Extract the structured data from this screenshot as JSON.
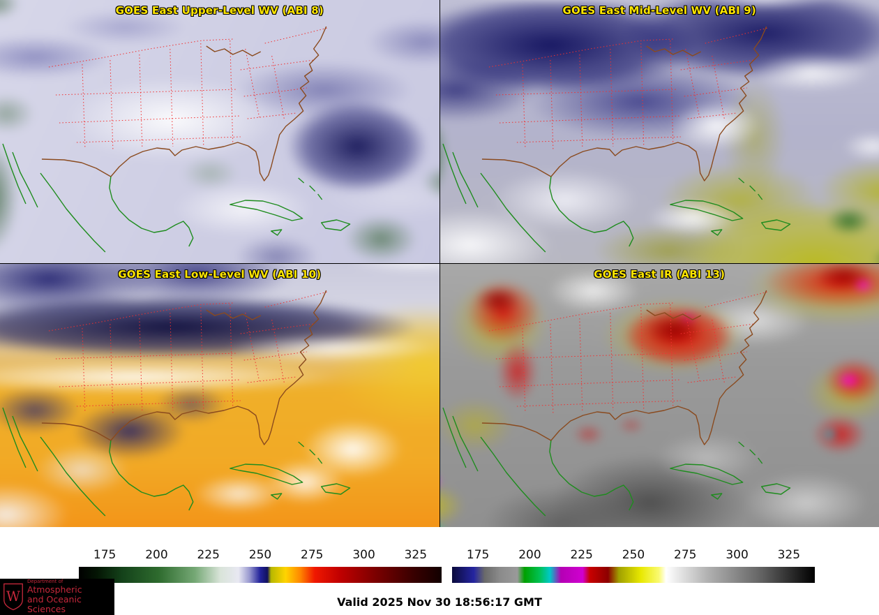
{
  "panels": [
    {
      "title": "GOES East Upper-Level WV (ABI 8)"
    },
    {
      "title": "GOES East Mid-Level WV (ABI 9)"
    },
    {
      "title": "GOES East Low-Level WV (ABI 10)"
    },
    {
      "title": "GOES East IR (ABI 13)"
    }
  ],
  "colorbars": [
    {
      "name": "water-vapor-enhancement",
      "ticks": [
        175,
        200,
        225,
        250,
        275,
        300,
        325
      ],
      "range": [
        162.5,
        337.5
      ],
      "stops": [
        [
          0,
          "#000000"
        ],
        [
          5,
          "#041504"
        ],
        [
          12,
          "#14421a"
        ],
        [
          22,
          "#2e6b2e"
        ],
        [
          32,
          "#75a875"
        ],
        [
          39,
          "#d9e4d9"
        ],
        [
          44,
          "#e8e8f2"
        ],
        [
          47,
          "#9a9ad0"
        ],
        [
          50,
          "#22229a"
        ],
        [
          52,
          "#11115e"
        ],
        [
          53,
          "#b8b800"
        ],
        [
          57,
          "#ffd400"
        ],
        [
          61,
          "#ff8800"
        ],
        [
          65,
          "#f01800"
        ],
        [
          72,
          "#c00000"
        ],
        [
          82,
          "#7a0000"
        ],
        [
          92,
          "#3a0000"
        ],
        [
          100,
          "#120000"
        ]
      ]
    },
    {
      "name": "ir-enhancement",
      "ticks": [
        175,
        200,
        225,
        250,
        275,
        300,
        325
      ],
      "range": [
        162.5,
        337.5
      ],
      "stops": [
        [
          0,
          "#0a0a3c"
        ],
        [
          6,
          "#2525a0"
        ],
        [
          9,
          "#6a6a6a"
        ],
        [
          13,
          "#8a8a8a"
        ],
        [
          18,
          "#9a9a9a"
        ],
        [
          20,
          "#00a000"
        ],
        [
          24,
          "#00c050"
        ],
        [
          27,
          "#00c8c8"
        ],
        [
          30,
          "#b400b4"
        ],
        [
          36,
          "#d000d0"
        ],
        [
          38,
          "#c80000"
        ],
        [
          43,
          "#8c0000"
        ],
        [
          46,
          "#a0a000"
        ],
        [
          52,
          "#e8e800"
        ],
        [
          57,
          "#fafa70"
        ],
        [
          59,
          "#ffffff"
        ],
        [
          70,
          "#b4b4b4"
        ],
        [
          85,
          "#646464"
        ],
        [
          100,
          "#000000"
        ]
      ]
    }
  ],
  "footer": {
    "valid_label": "Valid 2025 Nov 30 18:56:17 GMT"
  },
  "logo": {
    "letter": "W",
    "dept_line": "Department of",
    "name_line1": "Atmospheric",
    "name_line2": "and Oceanic Sciences"
  },
  "colors": {
    "title-yellow": "#ffe600",
    "state-red": "#f23030",
    "country-brown": "#8a4a1e",
    "coast-green": "#1e8c1e",
    "logo-red": "#c5283b"
  }
}
